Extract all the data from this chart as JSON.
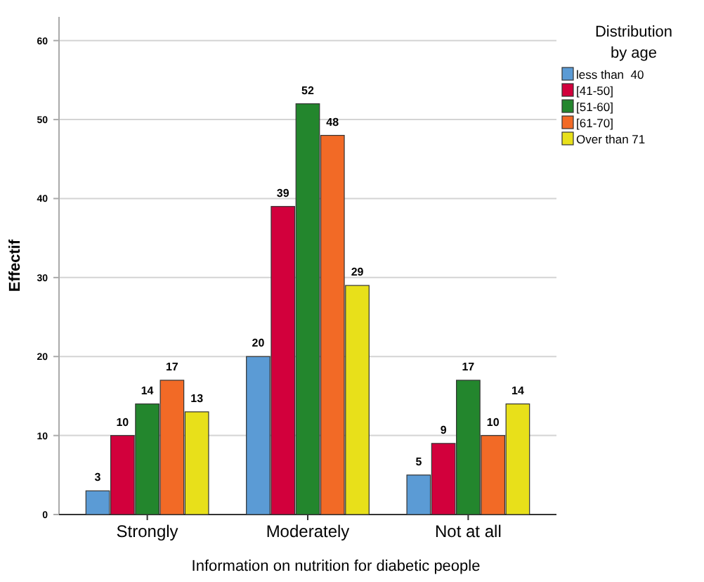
{
  "chart_data": {
    "type": "bar",
    "xlabel": "Information on nutrition for diabetic people",
    "ylabel": "Effectif",
    "legend_title": "Distribution\nby age",
    "categories": [
      "Strongly",
      "Moderately",
      "Not at all"
    ],
    "series": [
      {
        "name": "less than  40",
        "color": "#5b9bd5",
        "values": [
          3,
          20,
          5
        ]
      },
      {
        "name": "[41-50]",
        "color": "#d2003c",
        "values": [
          10,
          39,
          9
        ]
      },
      {
        "name": "[51-60]",
        "color": "#23862d",
        "values": [
          14,
          52,
          17
        ]
      },
      {
        "name": "[61-70]",
        "color": "#f26a26",
        "values": [
          17,
          48,
          10
        ]
      },
      {
        "name": "Over than 71",
        "color": "#e8e01a",
        "values": [
          13,
          29,
          14
        ]
      }
    ],
    "ylim": [
      0,
      63
    ],
    "yticks": [
      0,
      10,
      20,
      30,
      40,
      50,
      60
    ],
    "grid": "y",
    "legend": "right",
    "data_labels": true
  }
}
